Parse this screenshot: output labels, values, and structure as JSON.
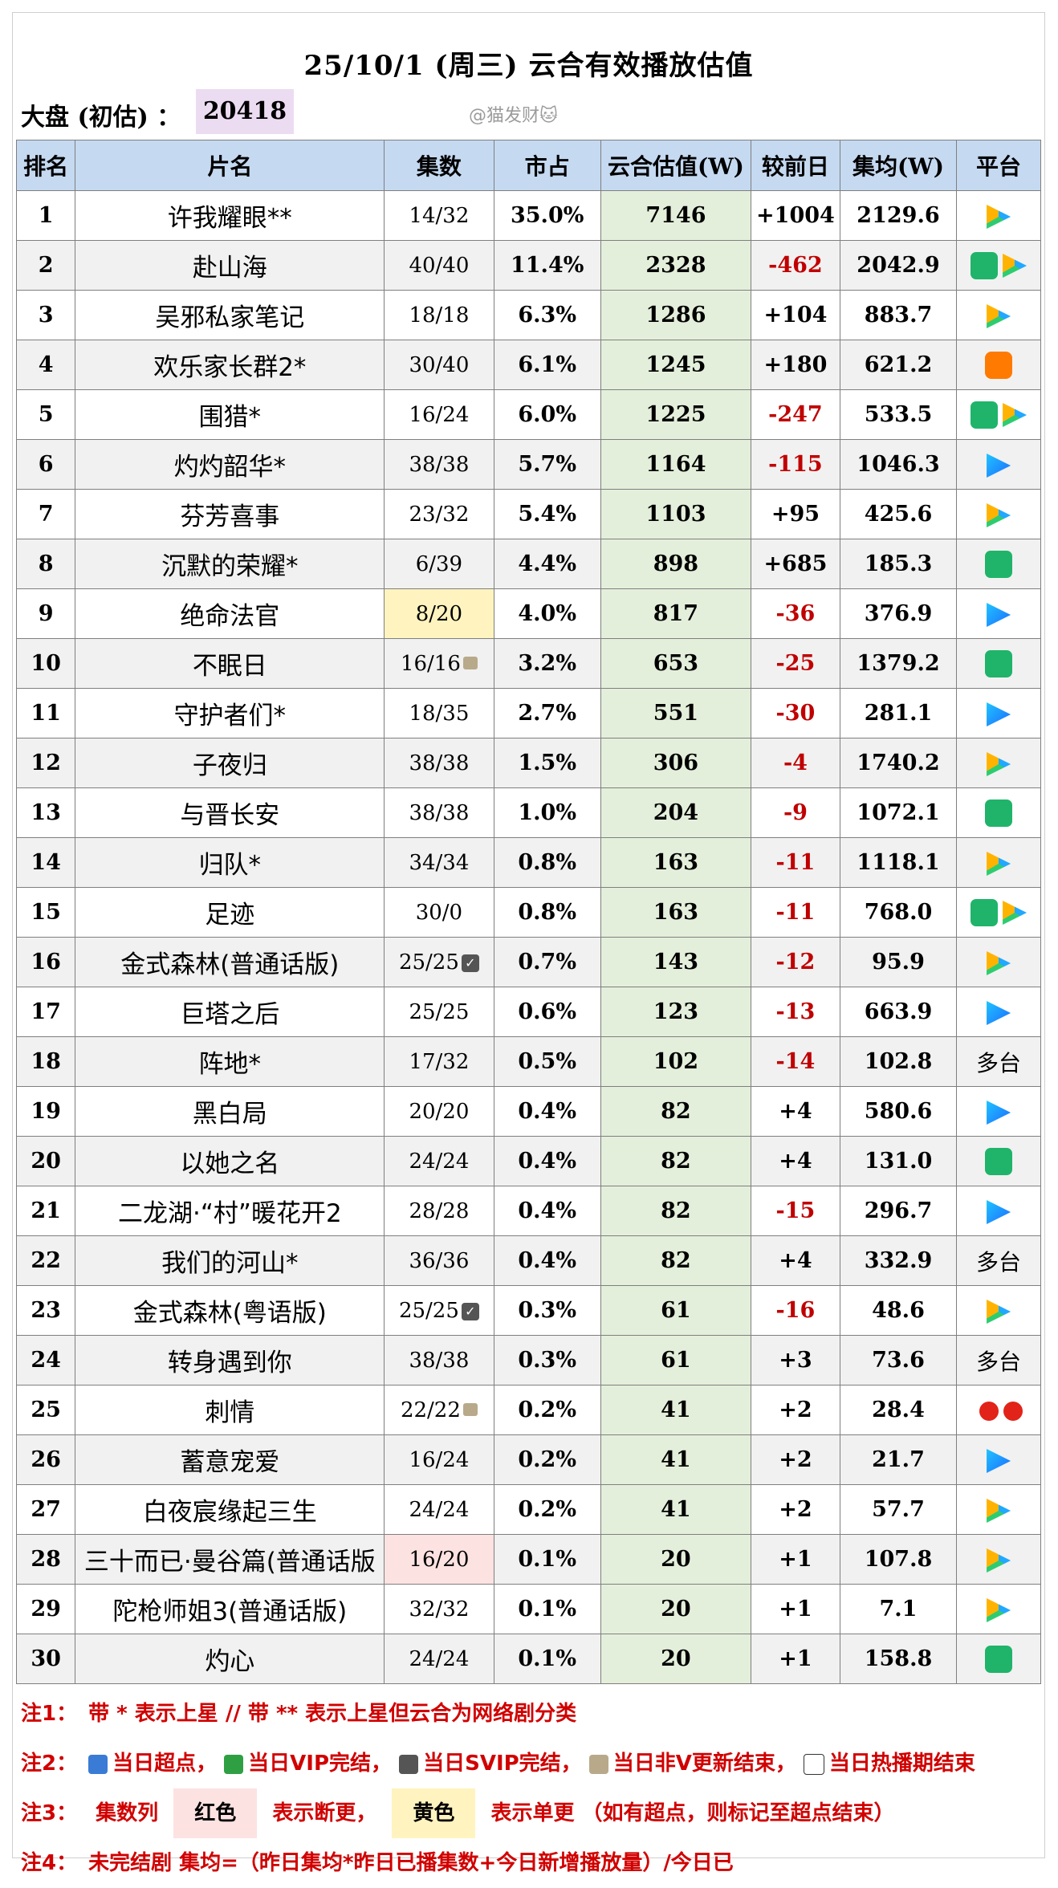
{
  "title": "25/10/1 (周三) 云合有效播放估值",
  "summary": {
    "label": "大盘 (初估) ：",
    "value": "20418"
  },
  "watermark": "@猫发财🐱",
  "headers": [
    "排名",
    "片名",
    "集数",
    "市占",
    "云合估值(W)",
    "较前日",
    "集均(W)",
    "平台"
  ],
  "rows": [
    {
      "rank": "1",
      "name": "许我耀眼**",
      "eps": "14/32",
      "share": "35.0%",
      "value": "7146",
      "change": "+1004",
      "avg": "2129.6",
      "platforms": [
        "tencent"
      ]
    },
    {
      "rank": "2",
      "name": "赴山海",
      "eps": "40/40",
      "share": "11.4%",
      "value": "2328",
      "change": "-462",
      "avg": "2042.9",
      "platforms": [
        "iqiyi",
        "tencent"
      ]
    },
    {
      "rank": "3",
      "name": "吴邪私家笔记",
      "eps": "18/18",
      "share": "6.3%",
      "value": "1286",
      "change": "+104",
      "avg": "883.7",
      "platforms": [
        "tencent"
      ]
    },
    {
      "rank": "4",
      "name": "欢乐家长群2*",
      "eps": "30/40",
      "share": "6.1%",
      "value": "1245",
      "change": "+180",
      "avg": "621.2",
      "platforms": [
        "mgtv"
      ]
    },
    {
      "rank": "5",
      "name": "围猎*",
      "eps": "16/24",
      "share": "6.0%",
      "value": "1225",
      "change": "-247",
      "avg": "533.5",
      "platforms": [
        "iqiyi",
        "tencent"
      ]
    },
    {
      "rank": "6",
      "name": "灼灼韶华*",
      "eps": "38/38",
      "share": "5.7%",
      "value": "1164",
      "change": "-115",
      "avg": "1046.3",
      "platforms": [
        "youku"
      ]
    },
    {
      "rank": "7",
      "name": "芬芳喜事",
      "eps": "23/32",
      "share": "5.4%",
      "value": "1103",
      "change": "+95",
      "avg": "425.6",
      "platforms": [
        "tencent"
      ]
    },
    {
      "rank": "8",
      "name": "沉默的荣耀*",
      "eps": "6/39",
      "share": "4.4%",
      "value": "898",
      "change": "+685",
      "avg": "185.3",
      "platforms": [
        "iqiyi"
      ]
    },
    {
      "rank": "9",
      "name": "绝命法官",
      "eps": "8/20",
      "share": "4.0%",
      "value": "817",
      "change": "-36",
      "avg": "376.9",
      "platforms": [
        "youku"
      ],
      "eps_mark": "single"
    },
    {
      "rank": "10",
      "name": "不眠日",
      "eps": "16/16",
      "share": "3.2%",
      "value": "653",
      "change": "-25",
      "avg": "1379.2",
      "platforms": [
        "iqiyi"
      ],
      "eps_icon": "lock"
    },
    {
      "rank": "11",
      "name": "守护者们*",
      "eps": "18/35",
      "share": "2.7%",
      "value": "551",
      "change": "-30",
      "avg": "281.1",
      "platforms": [
        "youku"
      ]
    },
    {
      "rank": "12",
      "name": "子夜归",
      "eps": "38/38",
      "share": "1.5%",
      "value": "306",
      "change": "-4",
      "avg": "1740.2",
      "platforms": [
        "tencent"
      ]
    },
    {
      "rank": "13",
      "name": "与晋长安",
      "eps": "38/38",
      "share": "1.0%",
      "value": "204",
      "change": "-9",
      "avg": "1072.1",
      "platforms": [
        "iqiyi"
      ]
    },
    {
      "rank": "14",
      "name": "归队*",
      "eps": "34/34",
      "share": "0.8%",
      "value": "163",
      "change": "-11",
      "avg": "1118.1",
      "platforms": [
        "tencent"
      ]
    },
    {
      "rank": "15",
      "name": "足迹",
      "eps": "30/0",
      "share": "0.8%",
      "value": "163",
      "change": "-11",
      "avg": "768.0",
      "platforms": [
        "iqiyi",
        "tencent"
      ]
    },
    {
      "rank": "16",
      "name": "金式森林(普通话版)",
      "eps": "25/25",
      "share": "0.7%",
      "value": "143",
      "change": "-12",
      "avg": "95.9",
      "platforms": [
        "tencent"
      ],
      "eps_icon": "check"
    },
    {
      "rank": "17",
      "name": "巨塔之后",
      "eps": "25/25",
      "share": "0.6%",
      "value": "123",
      "change": "-13",
      "avg": "663.9",
      "platforms": [
        "youku"
      ]
    },
    {
      "rank": "18",
      "name": "阵地*",
      "eps": "17/32",
      "share": "0.5%",
      "value": "102",
      "change": "-14",
      "avg": "102.8",
      "platforms": [],
      "platform_text": "多台"
    },
    {
      "rank": "19",
      "name": "黑白局",
      "eps": "20/20",
      "share": "0.4%",
      "value": "82",
      "change": "+4",
      "avg": "580.6",
      "platforms": [
        "youku"
      ]
    },
    {
      "rank": "20",
      "name": "以她之名",
      "eps": "24/24",
      "share": "0.4%",
      "value": "82",
      "change": "+4",
      "avg": "131.0",
      "platforms": [
        "iqiyi"
      ]
    },
    {
      "rank": "21",
      "name": "二龙湖·“村”暖花开2",
      "eps": "28/28",
      "share": "0.4%",
      "value": "82",
      "change": "-15",
      "avg": "296.7",
      "platforms": [
        "youku"
      ]
    },
    {
      "rank": "22",
      "name": "我们的河山*",
      "eps": "36/36",
      "share": "0.4%",
      "value": "82",
      "change": "+4",
      "avg": "332.9",
      "platforms": [],
      "platform_text": "多台"
    },
    {
      "rank": "23",
      "name": "金式森林(粤语版)",
      "eps": "25/25",
      "share": "0.3%",
      "value": "61",
      "change": "-16",
      "avg": "48.6",
      "platforms": [
        "tencent"
      ],
      "eps_icon": "check"
    },
    {
      "rank": "24",
      "name": "转身遇到你",
      "eps": "38/38",
      "share": "0.3%",
      "value": "61",
      "change": "+3",
      "avg": "73.6",
      "platforms": [],
      "platform_text": "多台"
    },
    {
      "rank": "25",
      "name": "刺情",
      "eps": "22/22",
      "share": "0.2%",
      "value": "41",
      "change": "+2",
      "avg": "28.4",
      "platforms": [
        "le"
      ],
      "eps_icon": "lock"
    },
    {
      "rank": "26",
      "name": "蓄意宠爱",
      "eps": "16/24",
      "share": "0.2%",
      "value": "41",
      "change": "+2",
      "avg": "21.7",
      "platforms": [
        "youku"
      ]
    },
    {
      "rank": "27",
      "name": "白夜宸缘起三生",
      "eps": "24/24",
      "share": "0.2%",
      "value": "41",
      "change": "+2",
      "avg": "57.7",
      "platforms": [
        "tencent"
      ]
    },
    {
      "rank": "28",
      "name": "三十而已·曼谷篇(普通话版",
      "eps": "16/20",
      "share": "0.1%",
      "value": "20",
      "change": "+1",
      "avg": "107.8",
      "platforms": [
        "tencent"
      ],
      "eps_mark": "broken"
    },
    {
      "rank": "29",
      "name": "陀枪师姐3(普通话版)",
      "eps": "32/32",
      "share": "0.1%",
      "value": "20",
      "change": "+1",
      "avg": "7.1",
      "platforms": [
        "tencent"
      ]
    },
    {
      "rank": "30",
      "name": "灼心",
      "eps": "24/24",
      "share": "0.1%",
      "value": "20",
      "change": "+1",
      "avg": "158.8",
      "platforms": [
        "iqiyi"
      ]
    }
  ],
  "notes": {
    "n1": {
      "label": "注1：",
      "text": "带 * 表示上星 // 带 ** 表示上星但云合为网络剧分类"
    },
    "n2": {
      "label": "注2：",
      "parts": [
        "当日超点，",
        "当日VIP完结，",
        "当日SVIP完结，",
        "当日非V更新结束，",
        "当日热播期结束"
      ]
    },
    "n3": {
      "label": "注3：",
      "a": "集数列",
      "red": "红色",
      "b": "表示断更，",
      "yellow": "黄色",
      "c": "表示单更 （如有超点，则标记至超点结束）"
    },
    "n4": {
      "label": "注4：",
      "text": "未完结剧 集均=（昨日集均*昨日已播集数+今日新增播放量）/今日已"
    }
  },
  "colors": {
    "header_bg": "#c5d9f1",
    "value_bg": "#e4efdb",
    "negative": "#c00000",
    "note_red": "#d10000",
    "summary_bg": "#ecdcf1"
  }
}
